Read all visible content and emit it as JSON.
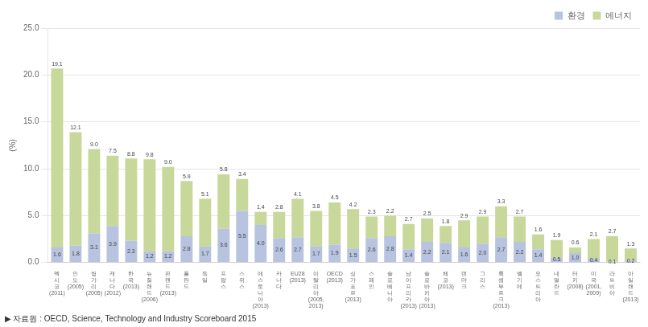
{
  "chart_data": {
    "type": "bar",
    "stacked": true,
    "data_labels": true,
    "grid": true,
    "legend": "upper right",
    "ylabel": "(%)",
    "annotations": [
      "▶ 자료원 : OECD, Science, Technology and Industry Scoreboard 2015"
    ],
    "ylim": [
      0,
      25.0
    ],
    "yticks": [
      {
        "value": 0.0,
        "label": "0.0"
      },
      {
        "value": 5.0,
        "label": "5.0"
      },
      {
        "value": 10.0,
        "label": "10.0"
      },
      {
        "value": 15.0,
        "label": "15.0"
      },
      {
        "value": 20.0,
        "label": "20.0"
      },
      {
        "value": 25.0,
        "label": "25.0"
      }
    ],
    "categories": [
      "멕\n시\n코\n(2011)",
      "인\n도\n(2005)",
      "헝\n가\n리\n(2005)",
      "캐\n나\n다\n(2012)",
      "한\n국\n(2013)",
      "뉴\n질\n랜\n드\n(2006)",
      "핀\n랜\n드\n(2013)",
      "폴\n란\n드",
      "독\n일",
      "프\n랑\n스",
      "스\n위\n스",
      "에\n스\n토\n니\n아\n(2013)",
      "카\n나\n다",
      "EU28\n(2013)",
      "이\n탈\n리\n아\n(2005,\n2013)",
      "OECD\n(2013)",
      "싱\n가\n포\n르\n(2013)",
      "스\n페\n인",
      "슬\n로\n베\n니\n아",
      "남\n아\n프\n리\n카\n(2013)",
      "슬\n로\n바\n키\n아\n(2013)",
      "체\n코\n(2013)",
      "덴\n마\n크",
      "그\n리\n스",
      "룩\n셈\n부\n르\n크\n(2013)",
      "벨\n기\n에",
      "오\n스\n트\n리\n아",
      "네\n덜\n란\n드",
      "터\n키\n(2008)",
      "미\n국\n(2001,\n2009)",
      "라\n트\n비\n아",
      "아\n일\n랜\n드\n(2013)"
    ],
    "series": [
      {
        "name": "환경",
        "color": "#b8c3e0",
        "values": [
          1.6,
          1.8,
          3.1,
          3.9,
          2.3,
          1.2,
          1.2,
          2.8,
          1.7,
          3.6,
          5.5,
          4.0,
          2.6,
          2.7,
          1.7,
          1.9,
          1.5,
          2.6,
          2.8,
          1.4,
          2.2,
          2.1,
          1.6,
          2.0,
          2.7,
          2.2,
          1.4,
          0.5,
          1.0,
          0.4,
          0.1,
          0.2
        ],
        "value_labels": [
          "1.6",
          "1.8",
          "3.1",
          "3.9",
          "2.3",
          "1.2",
          "1.2",
          "2.8",
          "1.7",
          "3.6",
          "5.5",
          "4.0",
          "2.6",
          "2.7",
          "1.7",
          "1.9",
          "1.5",
          "2.6",
          "2.8",
          "1.4",
          "2.2",
          "2.1",
          "1.6",
          "2.0",
          "2.7",
          "2.2",
          "1.4",
          "0.5",
          "1.0",
          "0.4",
          "0.1",
          "0.2"
        ]
      },
      {
        "name": "에너지",
        "color": "#c8d89a",
        "values": [
          19.1,
          12.1,
          9.0,
          7.5,
          8.8,
          9.8,
          9.0,
          5.9,
          5.1,
          5.8,
          3.4,
          1.4,
          2.8,
          4.1,
          3.8,
          4.5,
          4.2,
          2.3,
          2.2,
          2.7,
          2.5,
          1.8,
          2.9,
          2.9,
          3.3,
          2.7,
          1.6,
          1.9,
          0.6,
          2.1,
          2.7,
          1.3
        ],
        "value_labels": [
          "19.1",
          "12.1",
          "9.0",
          "7.5",
          "8.8",
          "9.8",
          "9.0",
          "5.9",
          "5.1",
          "5.8",
          "3.4",
          "1.4",
          "2.8",
          "4.1",
          "3.8",
          "4.5",
          "4.2",
          "2.3",
          "2.2",
          "2.7",
          "2.5",
          "1.8",
          "2.9",
          "2.9",
          "3.3",
          "2.7",
          "1.6",
          "1.9",
          "0.6",
          "2.1",
          "2.7",
          "1.3"
        ]
      }
    ]
  }
}
